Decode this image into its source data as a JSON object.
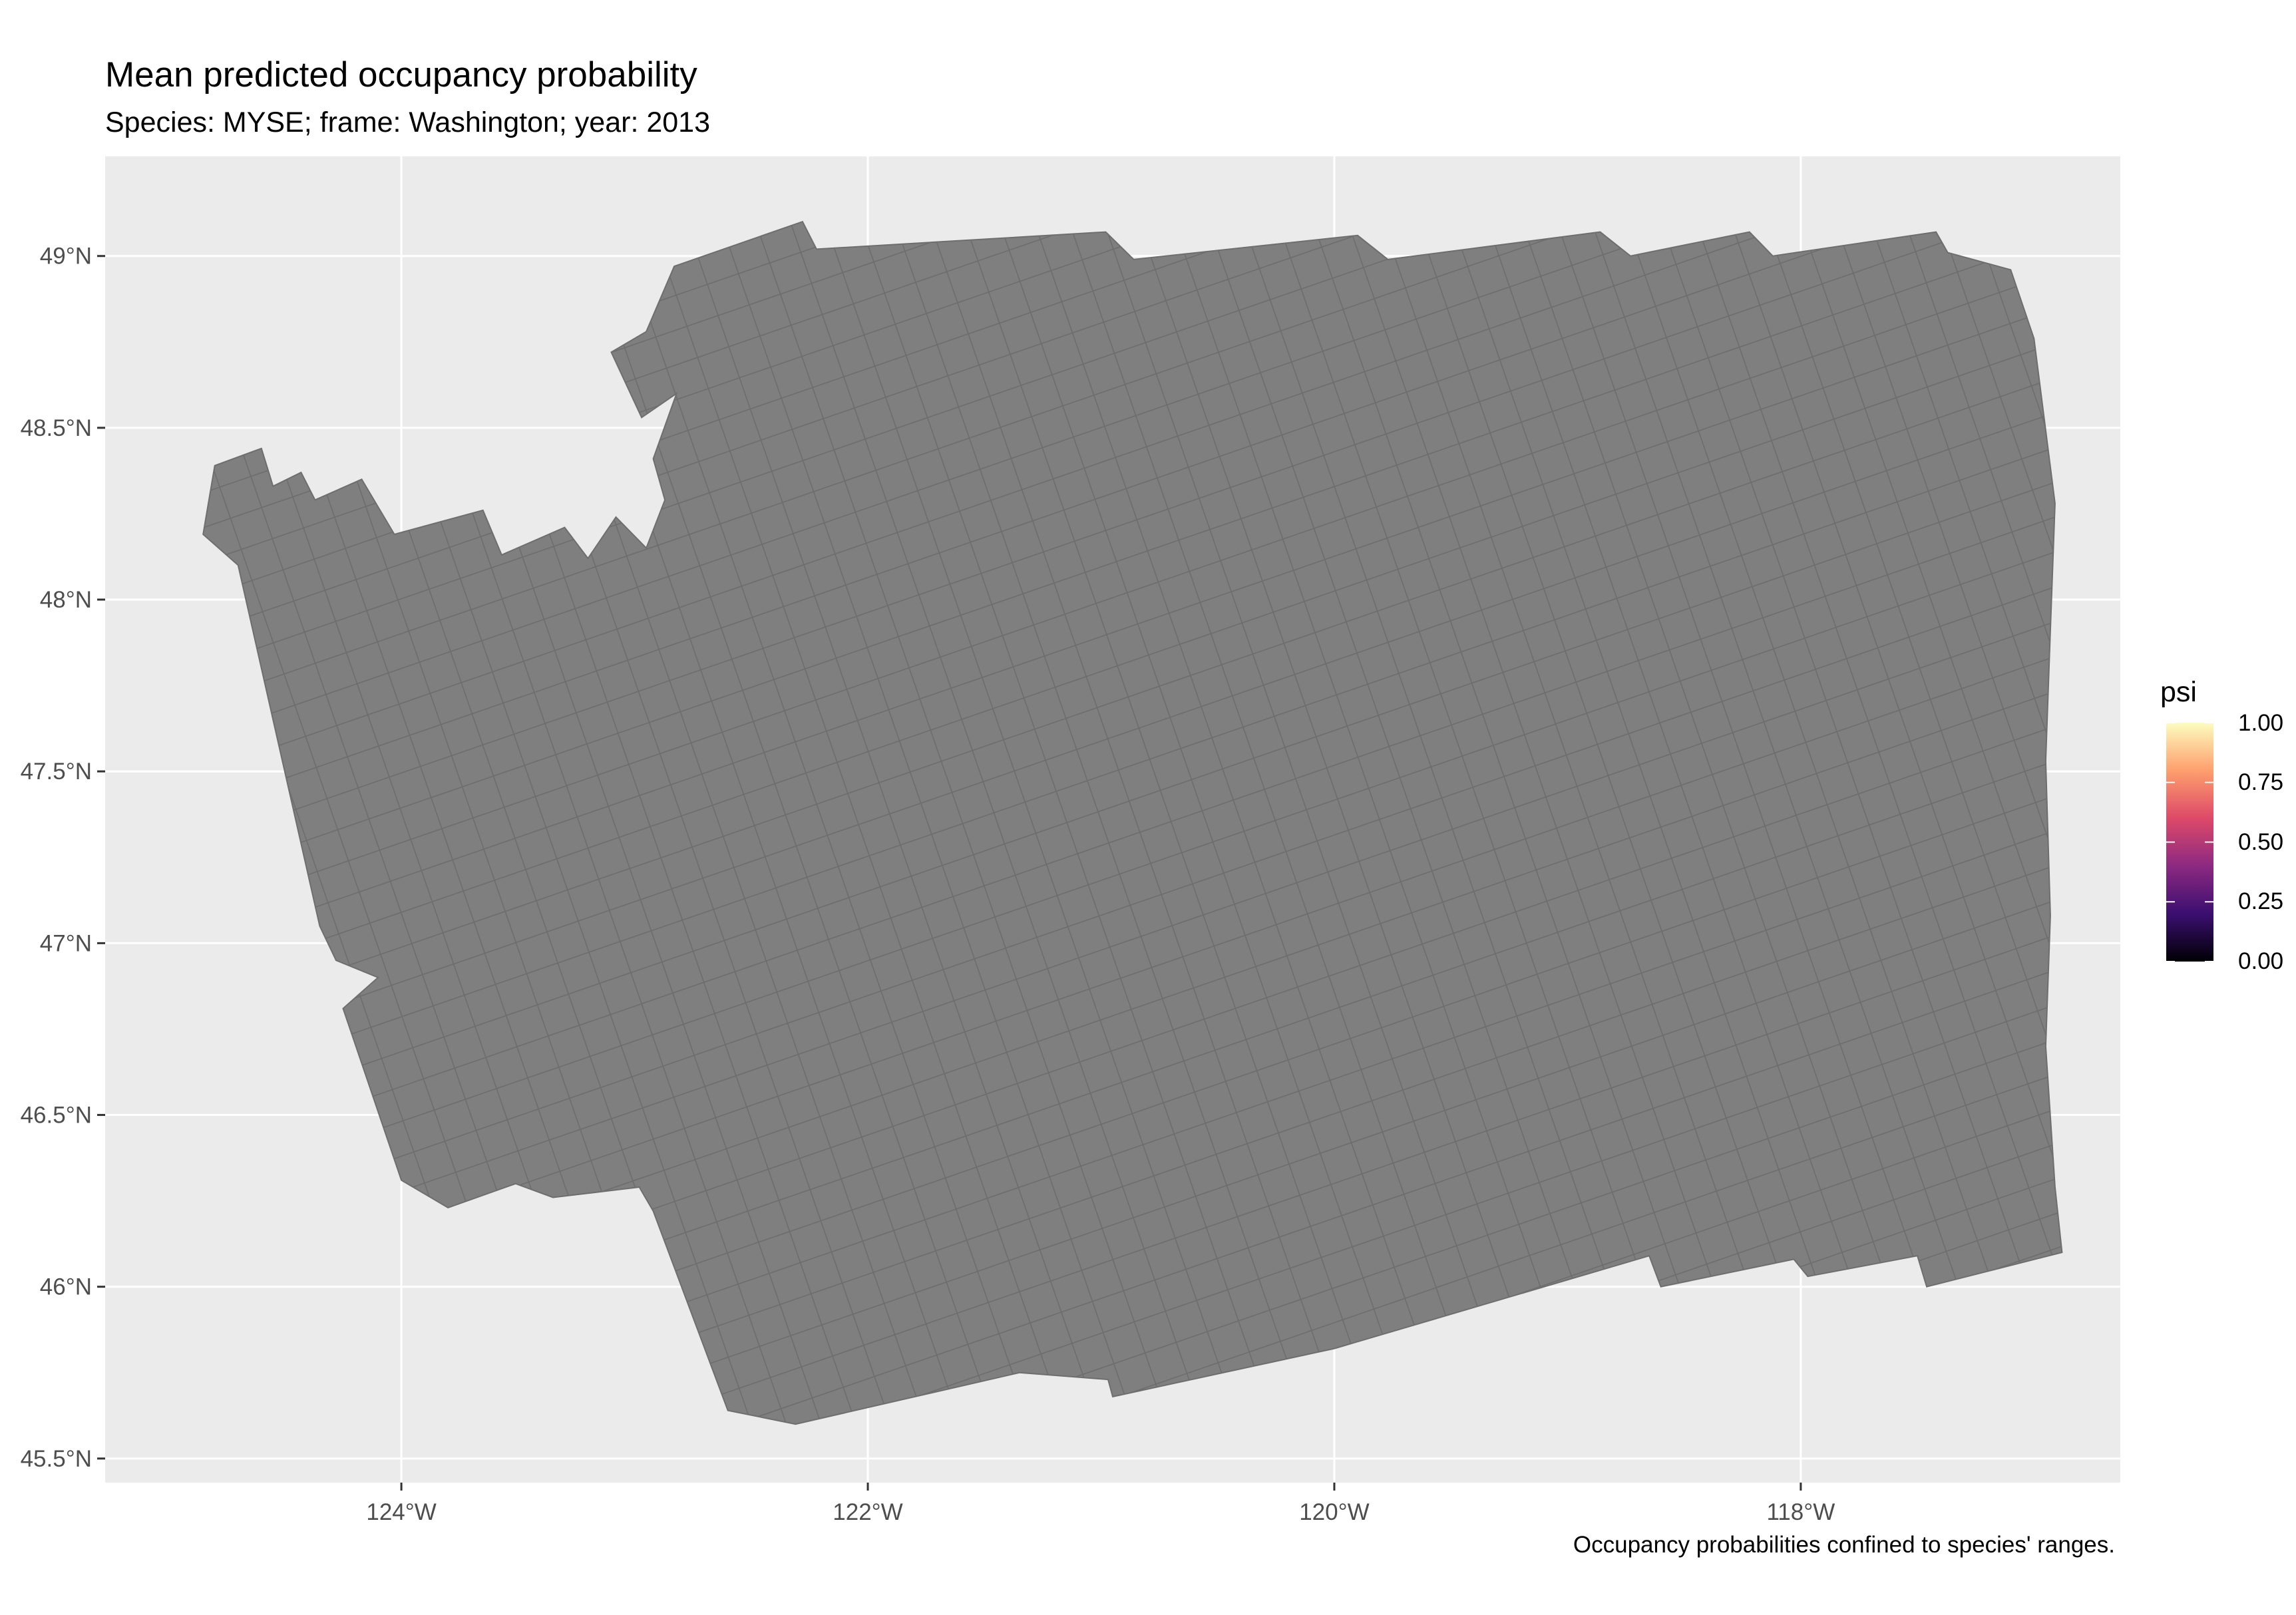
{
  "title": "Mean predicted occupancy probability",
  "subtitle": "Species: MYSE; frame: Washington; year: 2013",
  "caption": "Occupancy probabilities confined to species' ranges.",
  "colors": {
    "panel_background": "#ebebeb",
    "grid": "#ffffff",
    "cell_fill": "#7f7f7f",
    "cell_outline": "#6e6e6e",
    "legend_gradient": [
      "#000004",
      "#3b0f70",
      "#8c2981",
      "#de4968",
      "#fe9f6d",
      "#fcfdbf"
    ]
  },
  "legend": {
    "title": "psi",
    "labels": [
      "1.00",
      "0.75",
      "0.50",
      "0.25",
      "0.00"
    ]
  },
  "chart_data": {
    "type": "heatmap",
    "title": "Mean predicted occupancy probability",
    "subtitle": "Species: MYSE; frame: Washington; year: 2013",
    "caption": "Occupancy probabilities confined to species' ranges.",
    "x_ticks": [
      {
        "lon": -124,
        "label": "124°W"
      },
      {
        "lon": -122,
        "label": "122°W"
      },
      {
        "lon": -120,
        "label": "120°W"
      },
      {
        "lon": -118,
        "label": "118°W"
      }
    ],
    "y_ticks": [
      {
        "lat": 49.0,
        "label": "49°N"
      },
      {
        "lat": 48.5,
        "label": "48.5°N"
      },
      {
        "lat": 48.0,
        "label": "48°N"
      },
      {
        "lat": 47.5,
        "label": "47.5°N"
      },
      {
        "lat": 47.0,
        "label": "47°N"
      },
      {
        "lat": 46.5,
        "label": "46.5°N"
      },
      {
        "lat": 46.0,
        "label": "46°N"
      },
      {
        "lat": 45.5,
        "label": "45.5°N"
      }
    ],
    "xlim": [
      -125.27,
      -116.63
    ],
    "ylim": [
      45.43,
      49.29
    ],
    "fill_variable": "psi",
    "fill_range": [
      0,
      1
    ],
    "cell_values": "no data (all cells grey / NA)",
    "outline_lonlat": [
      [
        -124.8,
        48.39
      ],
      [
        -124.6,
        48.44
      ],
      [
        -124.55,
        48.33
      ],
      [
        -124.43,
        48.37
      ],
      [
        -124.37,
        48.29
      ],
      [
        -124.17,
        48.35
      ],
      [
        -124.03,
        48.19
      ],
      [
        -123.65,
        48.26
      ],
      [
        -123.57,
        48.13
      ],
      [
        -123.3,
        48.21
      ],
      [
        -123.2,
        48.12
      ],
      [
        -123.08,
        48.24
      ],
      [
        -122.95,
        48.15
      ],
      [
        -122.87,
        48.29
      ],
      [
        -122.92,
        48.41
      ],
      [
        -122.82,
        48.6
      ],
      [
        -122.97,
        48.53
      ],
      [
        -123.1,
        48.72
      ],
      [
        -122.95,
        48.78
      ],
      [
        -122.83,
        48.97
      ],
      [
        -122.28,
        49.1
      ],
      [
        -122.22,
        49.02
      ],
      [
        -120.98,
        49.07
      ],
      [
        -120.86,
        48.99
      ],
      [
        -119.9,
        49.06
      ],
      [
        -119.77,
        48.99
      ],
      [
        -118.86,
        49.07
      ],
      [
        -118.73,
        49.0
      ],
      [
        -118.22,
        49.07
      ],
      [
        -118.12,
        49.0
      ],
      [
        -117.42,
        49.07
      ],
      [
        -117.37,
        49.01
      ],
      [
        -117.1,
        48.96
      ],
      [
        -117.0,
        48.76
      ],
      [
        -116.91,
        48.28
      ],
      [
        -116.93,
        47.91
      ],
      [
        -116.95,
        47.53
      ],
      [
        -116.93,
        47.08
      ],
      [
        -116.95,
        46.7
      ],
      [
        -116.91,
        46.29
      ],
      [
        -116.88,
        46.1
      ],
      [
        -117.46,
        46.0
      ],
      [
        -117.5,
        46.09
      ],
      [
        -117.97,
        46.03
      ],
      [
        -118.03,
        46.08
      ],
      [
        -118.6,
        46.0
      ],
      [
        -118.65,
        46.09
      ],
      [
        -120.0,
        45.82
      ],
      [
        -120.95,
        45.68
      ],
      [
        -120.97,
        45.73
      ],
      [
        -121.35,
        45.75
      ],
      [
        -122.31,
        45.6
      ],
      [
        -122.6,
        45.64
      ],
      [
        -122.92,
        46.22
      ],
      [
        -122.98,
        46.29
      ],
      [
        -123.35,
        46.26
      ],
      [
        -123.51,
        46.3
      ],
      [
        -123.8,
        46.23
      ],
      [
        -124.0,
        46.31
      ],
      [
        -124.25,
        46.81
      ],
      [
        -124.1,
        46.9
      ],
      [
        -124.28,
        46.95
      ],
      [
        -124.35,
        47.05
      ],
      [
        -124.62,
        47.86
      ],
      [
        -124.7,
        48.1
      ],
      [
        -124.85,
        48.19
      ]
    ]
  }
}
